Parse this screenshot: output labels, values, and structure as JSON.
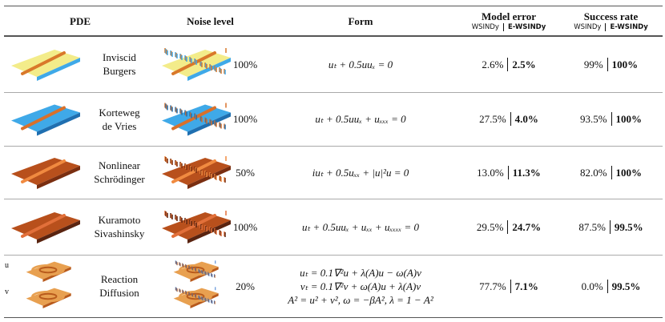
{
  "header": {
    "pde": "PDE",
    "noise": "Noise level",
    "form": "Form",
    "model_error": "Model error",
    "success_rate": "Success rate",
    "method_a": "WSINDy",
    "method_b": "E-WSINDy"
  },
  "rows": [
    {
      "pde": [
        "Inviscid",
        "Burgers"
      ],
      "noise": "100%",
      "form": [
        "uₜ + 0.5uuₓ = 0"
      ],
      "model_error": [
        "2.6%",
        "2.5%"
      ],
      "success_rate": [
        "99%",
        "100%"
      ]
    },
    {
      "pde": [
        "Korteweg",
        "de Vries"
      ],
      "noise": "100%",
      "form": [
        "uₜ + 0.5uuₓ + uₓₓₓ = 0"
      ],
      "model_error": [
        "27.5%",
        "4.0%"
      ],
      "success_rate": [
        "93.5%",
        "100%"
      ]
    },
    {
      "pde": [
        "Nonlinear",
        "Schrödinger"
      ],
      "noise": "50%",
      "form": [
        "iuₜ + 0.5uₓₓ + |u|²u = 0"
      ],
      "model_error": [
        "13.0%",
        "11.3%"
      ],
      "success_rate": [
        "82.0%",
        "100%"
      ]
    },
    {
      "pde": [
        "Kuramoto",
        "Sivashinsky"
      ],
      "noise": "100%",
      "form": [
        "uₜ + 0.5uuₓ + uₓₓ + uₓₓₓₓ = 0"
      ],
      "model_error": [
        "29.5%",
        "24.7%"
      ],
      "success_rate": [
        "87.5%",
        "99.5%"
      ]
    },
    {
      "pde": [
        "Reaction",
        "Diffusion"
      ],
      "labels": [
        "u",
        "v"
      ],
      "noise": "20%",
      "form": [
        "uₜ = 0.1∇²u + λ(A)u − ω(A)v",
        "vₜ = 0.1∇²v + ω(A)u + λ(A)v",
        "A² = u² + v², ω = −βA², λ = 1 − A²"
      ],
      "model_error": [
        "77.7%",
        "7.1%"
      ],
      "success_rate": [
        "0.0%",
        "99.5%"
      ]
    }
  ]
}
